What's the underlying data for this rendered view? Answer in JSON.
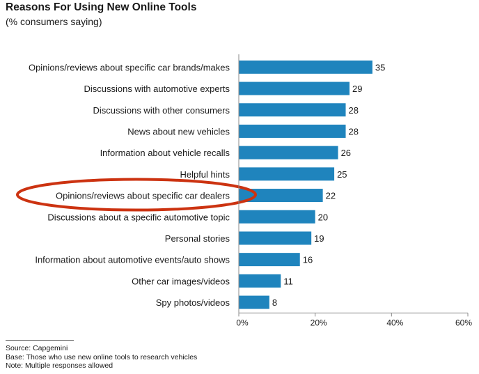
{
  "header": {
    "title": "Reasons For Using New Online Tools",
    "subtitle": "(% consumers saying)"
  },
  "footer": {
    "source": "Source: Capgemini",
    "base": "Base: Those who use new online tools to research vehicles",
    "note": "Note: Multiple responses allowed"
  },
  "chart_data": {
    "type": "bar",
    "orientation": "horizontal",
    "title": "Reasons For Using New Online Tools",
    "subtitle": "(% consumers saying)",
    "categories": [
      "Opinions/reviews about specific car brands/makes",
      "Discussions with automotive experts",
      "Discussions with other consumers",
      "News about new vehicles",
      "Information about vehicle recalls",
      "Helpful hints",
      "Opinions/reviews about specific car dealers",
      "Discussions about a specific automotive topic",
      "Personal stories",
      "Information about automotive events/auto shows",
      "Other car images/videos",
      "Spy photos/videos"
    ],
    "values": [
      35,
      29,
      28,
      28,
      26,
      25,
      22,
      20,
      19,
      16,
      11,
      8
    ],
    "data_labels": [
      "35",
      "29",
      "28",
      "28",
      "26",
      "25",
      "22",
      "20",
      "19",
      "16",
      "11",
      "8"
    ],
    "xlim": [
      0,
      60
    ],
    "x_ticks": [
      0,
      20,
      40,
      60
    ],
    "x_tick_labels": [
      "0%",
      "20%",
      "40%",
      "60%"
    ],
    "grid": false,
    "legend": "none",
    "highlighted_category": "Opinions/reviews about specific car dealers",
    "colors": {
      "bar": "#1f84bd",
      "highlight": "#cc3311",
      "axis": "#888888"
    }
  }
}
